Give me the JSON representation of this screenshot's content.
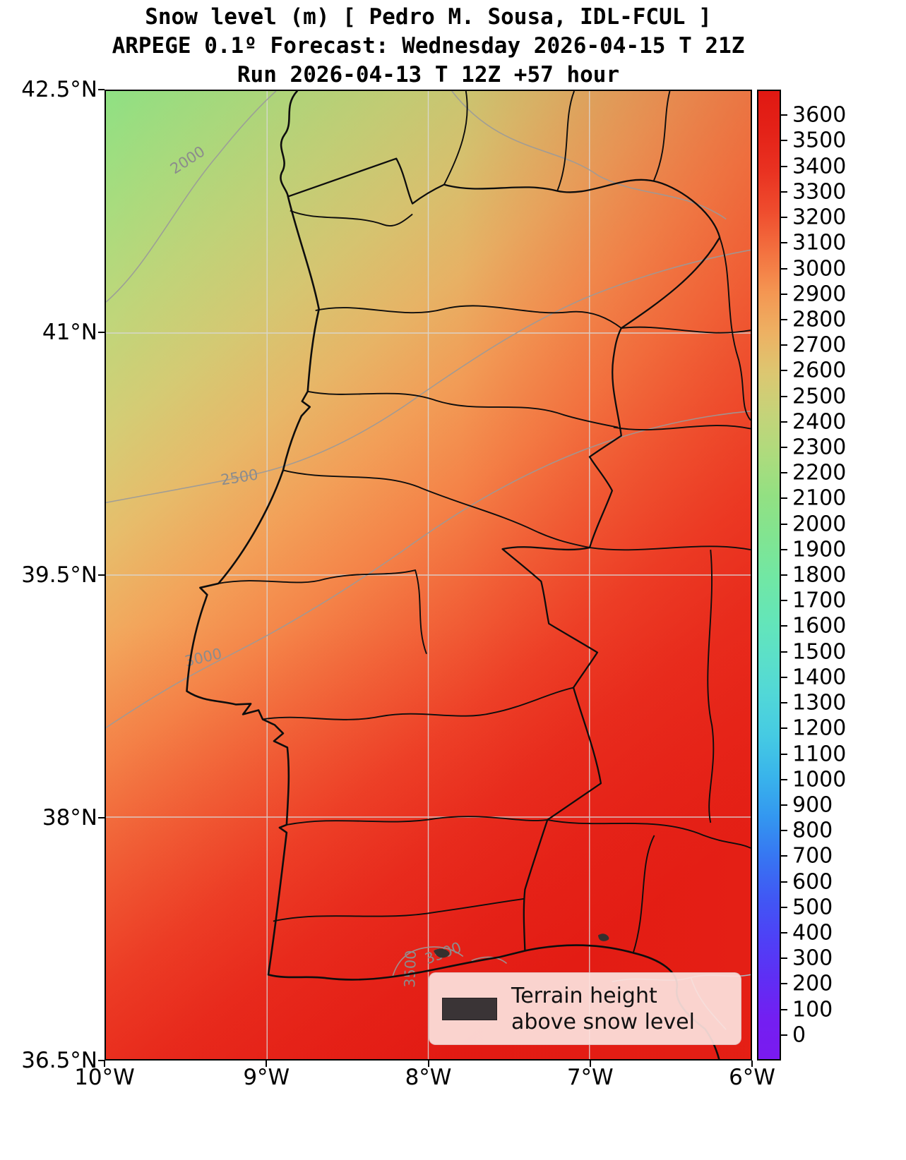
{
  "title": {
    "line1": "Snow level (m) [ Pedro M. Sousa, IDL-FCUL ]",
    "line2": "ARPEGE 0.1º Forecast: Wednesday 2026-04-15 T 21Z",
    "line3": "Run 2026-04-13 T 12Z +57 hour"
  },
  "y_axis": {
    "ticks": [
      "42.5°N",
      "41°N",
      "39.5°N",
      "38°N",
      "36.5°N"
    ]
  },
  "x_axis": {
    "ticks": [
      "10°W",
      "9°W",
      "8°W",
      "7°W",
      "6°W"
    ]
  },
  "colorbar": {
    "tick_values": [
      3600,
      3500,
      3400,
      3300,
      3200,
      3100,
      3000,
      2900,
      2800,
      2700,
      2600,
      2500,
      2400,
      2300,
      2200,
      2100,
      2000,
      1900,
      1800,
      1700,
      1600,
      1500,
      1400,
      1300,
      1200,
      1100,
      1000,
      900,
      800,
      700,
      600,
      500,
      400,
      300,
      200,
      100,
      0
    ]
  },
  "contours": {
    "labels": [
      "2000",
      "2500",
      "3000",
      "3500",
      "3500"
    ]
  },
  "legend": {
    "line1": "Terrain height",
    "line2": "above snow level"
  },
  "chart_data": {
    "type": "heatmap",
    "variable": "Snow level",
    "units": "m",
    "title": "Snow level (m) [ Pedro M. Sousa, IDL-FCUL ]",
    "model": "ARPEGE 0.1º",
    "valid_time": "Wednesday 2026-04-15 T 21Z",
    "run": "2026-04-13 T 12Z",
    "lead_hours": 57,
    "x_axis": {
      "ticks": [
        "10°W",
        "9°W",
        "8°W",
        "7°W",
        "6°W"
      ],
      "range_deg_west": [
        10,
        6
      ]
    },
    "y_axis": {
      "ticks": [
        "42.5°N",
        "41°N",
        "39.5°N",
        "38°N",
        "36.5°N"
      ],
      "range_deg_north": [
        36.5,
        42.5
      ]
    },
    "colorbar": {
      "min": 0,
      "max": 3600,
      "step": 100,
      "orientation": "vertical",
      "colormap": "rainbow"
    },
    "labeled_contours_m": [
      2000,
      2500,
      3000,
      3500
    ],
    "gradient_summary": "Snow level rises from about 2000 m in the NW corner (green) to above 3500 m in the south and southeast (red); contours run diagonally SW-NE over Portugal and western Spain",
    "legend": "Terrain height above snow level",
    "colormap_stops": [
      [
        0,
        "#7a1af0"
      ],
      [
        300,
        "#5536f6"
      ],
      [
        600,
        "#3a62f4"
      ],
      [
        900,
        "#31a1ef"
      ],
      [
        1100,
        "#40c4e8"
      ],
      [
        1400,
        "#57ddd2"
      ],
      [
        1700,
        "#68e8af"
      ],
      [
        1900,
        "#7ce696"
      ],
      [
        2100,
        "#90e083"
      ],
      [
        2300,
        "#b2da7c"
      ],
      [
        2500,
        "#cfd077"
      ],
      [
        2650,
        "#e4c26e"
      ],
      [
        2800,
        "#f2a95e"
      ],
      [
        2950,
        "#f58e4e"
      ],
      [
        3100,
        "#f26a3c"
      ],
      [
        3250,
        "#ee472b"
      ],
      [
        3450,
        "#e7281c"
      ],
      [
        3700,
        "#e01812"
      ]
    ]
  }
}
